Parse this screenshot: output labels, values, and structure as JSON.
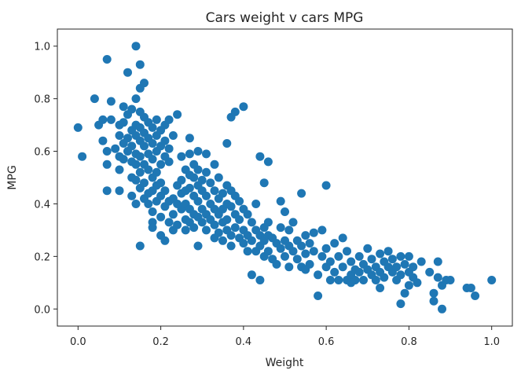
{
  "chart_data": {
    "type": "scatter",
    "title": "Cars weight v cars MPG",
    "xlabel": "Weight",
    "ylabel": "MPG",
    "xlim": [
      -0.05,
      1.05
    ],
    "ylim": [
      -0.065,
      1.065
    ],
    "grid": false,
    "x_ticks": [
      "0.0",
      "0.2",
      "0.4",
      "0.6",
      "0.8",
      "1.0"
    ],
    "y_ticks": [
      "0.0",
      "0.2",
      "0.4",
      "0.6",
      "0.8",
      "1.0"
    ],
    "marker_color": "#1f77b4",
    "series": [
      {
        "points": [
          [
            0.0,
            0.69
          ],
          [
            0.01,
            0.58
          ],
          [
            0.04,
            0.8
          ],
          [
            0.05,
            0.7
          ],
          [
            0.06,
            0.72
          ],
          [
            0.06,
            0.64
          ],
          [
            0.07,
            0.95
          ],
          [
            0.07,
            0.6
          ],
          [
            0.08,
            0.72
          ],
          [
            0.07,
            0.55
          ],
          [
            0.07,
            0.45
          ],
          [
            0.08,
            0.79
          ],
          [
            0.09,
            0.61
          ],
          [
            0.1,
            0.7
          ],
          [
            0.1,
            0.66
          ],
          [
            0.1,
            0.58
          ],
          [
            0.1,
            0.53
          ],
          [
            0.1,
            0.45
          ],
          [
            0.11,
            0.77
          ],
          [
            0.11,
            0.71
          ],
          [
            0.11,
            0.63
          ],
          [
            0.11,
            0.57
          ],
          [
            0.12,
            0.9
          ],
          [
            0.12,
            0.74
          ],
          [
            0.12,
            0.65
          ],
          [
            0.12,
            0.6
          ],
          [
            0.13,
            0.76
          ],
          [
            0.13,
            0.68
          ],
          [
            0.13,
            0.62
          ],
          [
            0.13,
            0.56
          ],
          [
            0.13,
            0.5
          ],
          [
            0.13,
            0.43
          ],
          [
            0.14,
            0.8
          ],
          [
            0.14,
            0.7
          ],
          [
            0.14,
            0.66
          ],
          [
            0.14,
            0.59
          ],
          [
            0.14,
            0.55
          ],
          [
            0.14,
            0.49
          ],
          [
            0.14,
            0.4
          ],
          [
            0.14,
            1.0
          ],
          [
            0.15,
            0.84
          ],
          [
            0.15,
            0.93
          ],
          [
            0.15,
            0.75
          ],
          [
            0.15,
            0.69
          ],
          [
            0.15,
            0.64
          ],
          [
            0.15,
            0.58
          ],
          [
            0.15,
            0.52
          ],
          [
            0.15,
            0.46
          ],
          [
            0.15,
            0.24
          ],
          [
            0.16,
            0.86
          ],
          [
            0.16,
            0.73
          ],
          [
            0.16,
            0.67
          ],
          [
            0.16,
            0.62
          ],
          [
            0.16,
            0.55
          ],
          [
            0.16,
            0.48
          ],
          [
            0.16,
            0.42
          ],
          [
            0.17,
            0.71
          ],
          [
            0.17,
            0.65
          ],
          [
            0.17,
            0.59
          ],
          [
            0.17,
            0.53
          ],
          [
            0.17,
            0.44
          ],
          [
            0.17,
            0.4
          ],
          [
            0.18,
            0.69
          ],
          [
            0.18,
            0.63
          ],
          [
            0.18,
            0.57
          ],
          [
            0.18,
            0.5
          ],
          [
            0.18,
            0.45
          ],
          [
            0.18,
            0.37
          ],
          [
            0.18,
            0.33
          ],
          [
            0.18,
            0.31
          ],
          [
            0.19,
            0.72
          ],
          [
            0.19,
            0.66
          ],
          [
            0.19,
            0.6
          ],
          [
            0.19,
            0.52
          ],
          [
            0.19,
            0.47
          ],
          [
            0.19,
            0.41
          ],
          [
            0.2,
            0.68
          ],
          [
            0.2,
            0.62
          ],
          [
            0.2,
            0.55
          ],
          [
            0.2,
            0.48
          ],
          [
            0.2,
            0.43
          ],
          [
            0.2,
            0.35
          ],
          [
            0.2,
            0.28
          ],
          [
            0.21,
            0.7
          ],
          [
            0.21,
            0.64
          ],
          [
            0.21,
            0.58
          ],
          [
            0.21,
            0.45
          ],
          [
            0.21,
            0.39
          ],
          [
            0.21,
            0.26
          ],
          [
            0.22,
            0.72
          ],
          [
            0.22,
            0.61
          ],
          [
            0.22,
            0.56
          ],
          [
            0.22,
            0.41
          ],
          [
            0.22,
            0.33
          ],
          [
            0.23,
            0.66
          ],
          [
            0.23,
            0.42
          ],
          [
            0.23,
            0.36
          ],
          [
            0.23,
            0.3
          ],
          [
            0.24,
            0.74
          ],
          [
            0.24,
            0.47
          ],
          [
            0.24,
            0.4
          ],
          [
            0.24,
            0.32
          ],
          [
            0.25,
            0.58
          ],
          [
            0.25,
            0.49
          ],
          [
            0.25,
            0.44
          ],
          [
            0.25,
            0.38
          ],
          [
            0.26,
            0.53
          ],
          [
            0.26,
            0.45
          ],
          [
            0.26,
            0.4
          ],
          [
            0.26,
            0.34
          ],
          [
            0.26,
            0.3
          ],
          [
            0.27,
            0.65
          ],
          [
            0.27,
            0.59
          ],
          [
            0.27,
            0.51
          ],
          [
            0.27,
            0.46
          ],
          [
            0.27,
            0.38
          ],
          [
            0.27,
            0.33
          ],
          [
            0.28,
            0.55
          ],
          [
            0.28,
            0.5
          ],
          [
            0.28,
            0.43
          ],
          [
            0.28,
            0.36
          ],
          [
            0.28,
            0.31
          ],
          [
            0.29,
            0.6
          ],
          [
            0.29,
            0.53
          ],
          [
            0.29,
            0.47
          ],
          [
            0.29,
            0.41
          ],
          [
            0.29,
            0.35
          ],
          [
            0.29,
            0.24
          ],
          [
            0.3,
            0.49
          ],
          [
            0.3,
            0.45
          ],
          [
            0.3,
            0.38
          ],
          [
            0.3,
            0.33
          ],
          [
            0.31,
            0.59
          ],
          [
            0.31,
            0.52
          ],
          [
            0.31,
            0.43
          ],
          [
            0.31,
            0.36
          ],
          [
            0.31,
            0.3
          ],
          [
            0.32,
            0.48
          ],
          [
            0.32,
            0.4
          ],
          [
            0.32,
            0.34
          ],
          [
            0.33,
            0.55
          ],
          [
            0.33,
            0.45
          ],
          [
            0.33,
            0.38
          ],
          [
            0.33,
            0.32
          ],
          [
            0.33,
            0.27
          ],
          [
            0.34,
            0.5
          ],
          [
            0.34,
            0.42
          ],
          [
            0.34,
            0.36
          ],
          [
            0.34,
            0.29
          ],
          [
            0.35,
            0.44
          ],
          [
            0.35,
            0.38
          ],
          [
            0.35,
            0.33
          ],
          [
            0.35,
            0.26
          ],
          [
            0.36,
            0.63
          ],
          [
            0.36,
            0.47
          ],
          [
            0.36,
            0.4
          ],
          [
            0.36,
            0.34
          ],
          [
            0.36,
            0.3
          ],
          [
            0.37,
            0.73
          ],
          [
            0.37,
            0.45
          ],
          [
            0.37,
            0.39
          ],
          [
            0.37,
            0.28
          ],
          [
            0.37,
            0.24
          ],
          [
            0.38,
            0.75
          ],
          [
            0.38,
            0.43
          ],
          [
            0.38,
            0.36
          ],
          [
            0.38,
            0.31
          ],
          [
            0.39,
            0.41
          ],
          [
            0.39,
            0.34
          ],
          [
            0.39,
            0.27
          ],
          [
            0.4,
            0.77
          ],
          [
            0.4,
            0.38
          ],
          [
            0.4,
            0.3
          ],
          [
            0.4,
            0.25
          ],
          [
            0.41,
            0.36
          ],
          [
            0.41,
            0.28
          ],
          [
            0.41,
            0.22
          ],
          [
            0.42,
            0.33
          ],
          [
            0.42,
            0.26
          ],
          [
            0.42,
            0.13
          ],
          [
            0.43,
            0.3
          ],
          [
            0.43,
            0.22
          ],
          [
            0.44,
            0.58
          ],
          [
            0.44,
            0.28
          ],
          [
            0.44,
            0.24
          ],
          [
            0.44,
            0.11
          ],
          [
            0.45,
            0.48
          ],
          [
            0.45,
            0.31
          ],
          [
            0.45,
            0.26
          ],
          [
            0.45,
            0.2
          ],
          [
            0.46,
            0.56
          ],
          [
            0.46,
            0.33
          ],
          [
            0.46,
            0.28
          ],
          [
            0.46,
            0.22
          ],
          [
            0.47,
            0.27
          ],
          [
            0.47,
            0.19
          ],
          [
            0.48,
            0.25
          ],
          [
            0.48,
            0.17
          ],
          [
            0.49,
            0.41
          ],
          [
            0.49,
            0.31
          ],
          [
            0.49,
            0.23
          ],
          [
            0.5,
            0.37
          ],
          [
            0.5,
            0.26
          ],
          [
            0.5,
            0.2
          ],
          [
            0.51,
            0.3
          ],
          [
            0.51,
            0.24
          ],
          [
            0.51,
            0.16
          ],
          [
            0.52,
            0.33
          ],
          [
            0.52,
            0.22
          ],
          [
            0.53,
            0.26
          ],
          [
            0.53,
            0.19
          ],
          [
            0.54,
            0.44
          ],
          [
            0.54,
            0.24
          ],
          [
            0.54,
            0.16
          ],
          [
            0.55,
            0.28
          ],
          [
            0.55,
            0.21
          ],
          [
            0.56,
            0.25
          ],
          [
            0.56,
            0.17
          ],
          [
            0.57,
            0.29
          ],
          [
            0.57,
            0.22
          ],
          [
            0.58,
            0.13
          ],
          [
            0.58,
            0.05
          ],
          [
            0.59,
            0.3
          ],
          [
            0.59,
            0.2
          ],
          [
            0.6,
            0.47
          ],
          [
            0.6,
            0.23
          ],
          [
            0.6,
            0.16
          ],
          [
            0.61,
            0.18
          ],
          [
            0.61,
            0.11
          ],
          [
            0.62,
            0.25
          ],
          [
            0.62,
            0.14
          ],
          [
            0.63,
            0.2
          ],
          [
            0.63,
            0.11
          ],
          [
            0.64,
            0.27
          ],
          [
            0.64,
            0.16
          ],
          [
            0.65,
            0.22
          ],
          [
            0.65,
            0.11
          ],
          [
            0.66,
            0.18
          ],
          [
            0.66,
            0.13
          ],
          [
            0.67,
            0.15
          ],
          [
            0.67,
            0.11
          ],
          [
            0.68,
            0.2
          ],
          [
            0.68,
            0.14
          ],
          [
            0.69,
            0.17
          ],
          [
            0.69,
            0.11
          ],
          [
            0.7,
            0.23
          ],
          [
            0.7,
            0.15
          ],
          [
            0.71,
            0.19
          ],
          [
            0.71,
            0.13
          ],
          [
            0.72,
            0.16
          ],
          [
            0.72,
            0.11
          ],
          [
            0.73,
            0.21
          ],
          [
            0.73,
            0.14
          ],
          [
            0.74,
            0.18
          ],
          [
            0.74,
            0.12
          ],
          [
            0.75,
            0.16
          ],
          [
            0.75,
            0.22
          ],
          [
            0.76,
            0.14
          ],
          [
            0.76,
            0.19
          ],
          [
            0.77,
            0.11
          ],
          [
            0.77,
            0.16
          ],
          [
            0.78,
            0.13
          ],
          [
            0.78,
            0.2
          ],
          [
            0.79,
            0.06
          ],
          [
            0.79,
            0.17
          ],
          [
            0.8,
            0.09
          ],
          [
            0.8,
            0.14
          ],
          [
            0.8,
            0.2
          ],
          [
            0.81,
            0.12
          ],
          [
            0.81,
            0.16
          ],
          [
            0.82,
            0.1
          ],
          [
            0.83,
            0.18
          ],
          [
            0.85,
            0.14
          ],
          [
            0.86,
            0.03
          ],
          [
            0.86,
            0.06
          ],
          [
            0.87,
            0.18
          ],
          [
            0.87,
            0.12
          ],
          [
            0.88,
            0.09
          ],
          [
            0.88,
            0.0
          ],
          [
            0.89,
            0.11
          ],
          [
            0.9,
            0.11
          ],
          [
            0.94,
            0.08
          ],
          [
            0.95,
            0.08
          ],
          [
            0.96,
            0.05
          ],
          [
            1.0,
            0.11
          ],
          [
            0.78,
            0.02
          ],
          [
            0.73,
            0.08
          ],
          [
            0.66,
            0.1
          ],
          [
            0.55,
            0.15
          ],
          [
            0.43,
            0.4
          ]
        ]
      }
    ]
  }
}
